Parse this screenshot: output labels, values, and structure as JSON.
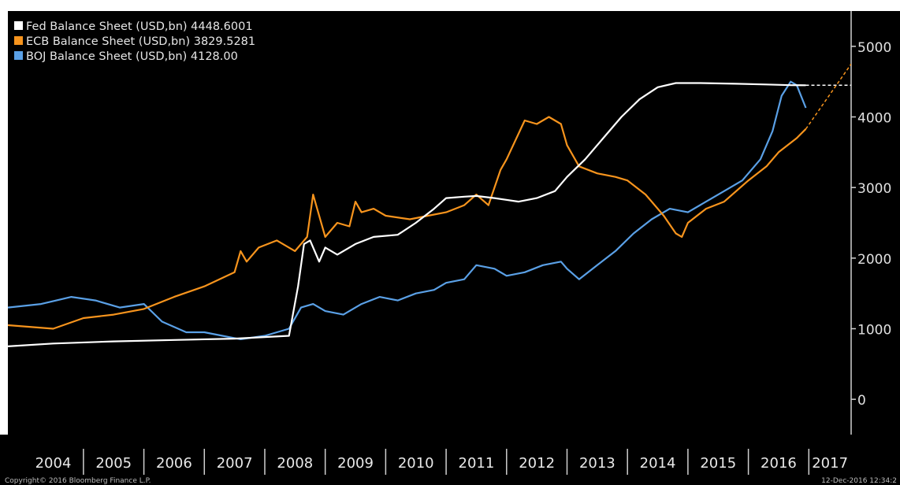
{
  "chart_data": {
    "type": "line",
    "title": "",
    "xlabel": "",
    "ylabel": "",
    "x_categories": [
      "2004",
      "2005",
      "2006",
      "2007",
      "2008",
      "2009",
      "2010",
      "2011",
      "2012",
      "2013",
      "2014",
      "2015",
      "2016",
      "2017"
    ],
    "xlim": [
      2003.75,
      2017.7
    ],
    "ylim": [
      -500,
      5500
    ],
    "y_ticks": [
      0,
      1000,
      2000,
      3000,
      4000,
      5000
    ],
    "y_tick_labels": [
      "0",
      "1000",
      "2000",
      "3000",
      "4000",
      "5000"
    ],
    "grid": false,
    "legend_position": "top-left",
    "background": "#000000",
    "series": [
      {
        "name": "Fed Balance Sheet (USD,bn) 4448.6001",
        "color": "#ffffff",
        "x": [
          2003.75,
          2004.5,
          2005.5,
          2006.5,
          2007.5,
          2008.4,
          2008.55,
          2008.65,
          2008.75,
          2008.9,
          2009.0,
          2009.2,
          2009.5,
          2009.8,
          2010.2,
          2010.5,
          2010.8,
          2011.0,
          2011.3,
          2011.5,
          2011.8,
          2012.2,
          2012.5,
          2012.8,
          2013.0,
          2013.3,
          2013.6,
          2013.9,
          2014.2,
          2014.5,
          2014.8,
          2015.2,
          2015.8,
          2016.3,
          2016.7,
          2016.95
        ],
        "y": [
          750,
          790,
          820,
          840,
          860,
          900,
          1600,
          2200,
          2250,
          1950,
          2150,
          2050,
          2200,
          2300,
          2330,
          2500,
          2700,
          2850,
          2870,
          2880,
          2850,
          2800,
          2850,
          2950,
          3150,
          3400,
          3700,
          4000,
          4250,
          4420,
          4480,
          4480,
          4470,
          4460,
          4450,
          4448.6
        ]
      },
      {
        "name": "ECB Balance Sheet (USD,bn) 3829.5281",
        "color": "#f7941d",
        "x": [
          2003.75,
          2004.5,
          2005.0,
          2005.5,
          2006.0,
          2006.5,
          2007.0,
          2007.5,
          2007.6,
          2007.7,
          2007.9,
          2008.2,
          2008.5,
          2008.7,
          2008.8,
          2009.0,
          2009.2,
          2009.4,
          2009.5,
          2009.6,
          2009.8,
          2010.0,
          2010.4,
          2010.7,
          2011.0,
          2011.3,
          2011.5,
          2011.7,
          2011.9,
          2012.0,
          2012.3,
          2012.5,
          2012.7,
          2012.9,
          2013.0,
          2013.2,
          2013.5,
          2013.8,
          2014.0,
          2014.3,
          2014.6,
          2014.8,
          2014.9,
          2015.0,
          2015.3,
          2015.6,
          2016.0,
          2016.3,
          2016.5,
          2016.8,
          2016.95
        ],
        "y": [
          1050,
          1000,
          1150,
          1200,
          1280,
          1450,
          1600,
          1800,
          2100,
          1950,
          2150,
          2250,
          2100,
          2300,
          2900,
          2300,
          2500,
          2450,
          2800,
          2650,
          2700,
          2600,
          2550,
          2600,
          2650,
          2750,
          2900,
          2750,
          3250,
          3400,
          3950,
          3900,
          4000,
          3900,
          3600,
          3300,
          3200,
          3150,
          3100,
          2900,
          2600,
          2350,
          2300,
          2500,
          2700,
          2800,
          3100,
          3300,
          3500,
          3700,
          3829.5
        ]
      },
      {
        "name": "BOJ Balance Sheet (USD,bn) 4128.00",
        "color": "#5aa0e6",
        "x": [
          2003.75,
          2004.3,
          2004.8,
          2005.2,
          2005.6,
          2006.0,
          2006.3,
          2006.7,
          2007.0,
          2007.3,
          2007.6,
          2008.0,
          2008.4,
          2008.6,
          2008.8,
          2009.0,
          2009.3,
          2009.6,
          2009.9,
          2010.2,
          2010.5,
          2010.8,
          2011.0,
          2011.3,
          2011.5,
          2011.8,
          2012.0,
          2012.3,
          2012.6,
          2012.9,
          2013.0,
          2013.2,
          2013.5,
          2013.8,
          2014.1,
          2014.4,
          2014.7,
          2015.0,
          2015.3,
          2015.6,
          2015.9,
          2016.2,
          2016.4,
          2016.55,
          2016.7,
          2016.8,
          2016.95
        ],
        "y": [
          1300,
          1350,
          1450,
          1400,
          1300,
          1350,
          1100,
          950,
          950,
          900,
          850,
          900,
          1000,
          1300,
          1350,
          1250,
          1200,
          1350,
          1450,
          1400,
          1500,
          1550,
          1650,
          1700,
          1900,
          1850,
          1750,
          1800,
          1900,
          1950,
          1850,
          1700,
          1900,
          2100,
          2350,
          2550,
          2700,
          2650,
          2800,
          2950,
          3100,
          3400,
          3800,
          4300,
          4500,
          4450,
          4128
        ]
      }
    ],
    "extensions": [
      {
        "of": "Fed Balance Sheet (USD,bn) 4448.6001",
        "style": "dashed",
        "color": "#ffffff",
        "x": [
          2016.95,
          2017.7
        ],
        "y": [
          4448.6,
          4448.6
        ]
      },
      {
        "of": "ECB Balance Sheet (USD,bn) 3829.5281",
        "style": "dashed",
        "color": "#f7941d",
        "x": [
          2016.95,
          2017.7
        ],
        "y": [
          3829.5,
          4750
        ]
      }
    ]
  },
  "footer": {
    "copyright": "Copyright© 2016 Bloomberg Finance L.P.",
    "timestamp": "12-Dec-2016 12:34:2"
  }
}
